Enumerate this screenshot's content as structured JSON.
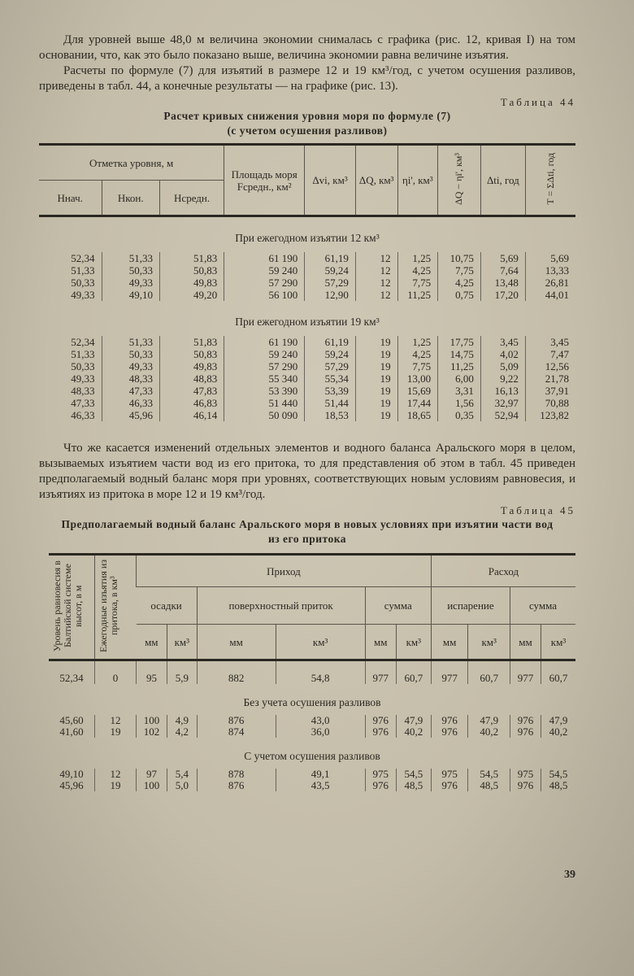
{
  "intro_paragraphs": [
    "Для уровней выше 48,0 м величина экономии снималась с графика (рис. 12, кривая I) на том основании, что, как это было показано выше, величина экономии равна величине изъятия.",
    "Расчеты по формуле (7) для изъятий в размере 12 и 19 км³/год, с учетом осушения разливов, приведены в табл. 44, а конечные результаты — на графике (рис. 13)."
  ],
  "table44": {
    "label": "Таблица 44",
    "title": "Расчет кривых снижения уровня моря по формуле (7)",
    "subtitle": "(с учетом осушения разливов)",
    "header_group": "Отметка уровня, м",
    "headers": [
      "Hнач.",
      "Hкон.",
      "Hсредн.",
      "Площадь моря Fсредн., км²",
      "Δvi, км³",
      "ΔQ, км³",
      "ηi', км³",
      "ΔQ − ηi', км³",
      "Δti, год",
      "T = ΣΔti, год"
    ],
    "sections": [
      {
        "title": "При ежегодном изъятии 12 км³",
        "rows": [
          [
            "52,34",
            "51,33",
            "51,83",
            "61 190",
            "61,19",
            "12",
            "1,25",
            "10,75",
            "5,69",
            "5,69"
          ],
          [
            "51,33",
            "50,33",
            "50,83",
            "59 240",
            "59,24",
            "12",
            "4,25",
            "7,75",
            "7,64",
            "13,33"
          ],
          [
            "50,33",
            "49,33",
            "49,83",
            "57 290",
            "57,29",
            "12",
            "7,75",
            "4,25",
            "13,48",
            "26,81"
          ],
          [
            "49,33",
            "49,10",
            "49,20",
            "56 100",
            "12,90",
            "12",
            "11,25",
            "0,75",
            "17,20",
            "44,01"
          ]
        ]
      },
      {
        "title": "При ежегодном изъятии 19 км³",
        "rows": [
          [
            "52,34",
            "51,33",
            "51,83",
            "61 190",
            "61,19",
            "19",
            "1,25",
            "17,75",
            "3,45",
            "3,45"
          ],
          [
            "51,33",
            "50,33",
            "50,83",
            "59 240",
            "59,24",
            "19",
            "4,25",
            "14,75",
            "4,02",
            "7,47"
          ],
          [
            "50,33",
            "49,33",
            "49,83",
            "57 290",
            "57,29",
            "19",
            "7,75",
            "11,25",
            "5,09",
            "12,56"
          ],
          [
            "49,33",
            "48,33",
            "48,83",
            "55 340",
            "55,34",
            "19",
            "13,00",
            "6,00",
            "9,22",
            "21,78"
          ],
          [
            "48,33",
            "47,33",
            "47,83",
            "53 390",
            "53,39",
            "19",
            "15,69",
            "3,31",
            "16,13",
            "37,91"
          ],
          [
            "47,33",
            "46,33",
            "46,83",
            "51 440",
            "51,44",
            "19",
            "17,44",
            "1,56",
            "32,97",
            "70,88"
          ],
          [
            "46,33",
            "45,96",
            "46,14",
            "50 090",
            "18,53",
            "19",
            "18,65",
            "0,35",
            "52,94",
            "123,82"
          ]
        ]
      }
    ]
  },
  "middle_paragraph": "Что же касается изменений отдельных элементов и водного баланса Аральского моря в целом, вызываемых изъятием части вод из его притока, то для представления об этом в табл. 45 приведен предполагаемый водный баланс моря при уровнях, соответствующих новым условиям равновесия, и изъятиях из притока в море 12 и 19 км³/год.",
  "table45": {
    "label": "Таблица 45",
    "title": "Предполагаемый водный баланс Аральского моря в новых условиях при изъятии части вод из его притока",
    "col1": "Уровень равновесия в Балтийской системе высот, в м",
    "col2": "Ежегодные изъятия из притока, в км³",
    "income": "Приход",
    "outcome": "Расход",
    "groups": [
      "осадки",
      "поверхностный приток",
      "сумма",
      "испарение",
      "сумма"
    ],
    "units": [
      "мм",
      "км³",
      "мм",
      "км³",
      "мм",
      "км³",
      "мм",
      "км³",
      "мм",
      "км³"
    ],
    "base_row": [
      "52,34",
      "0",
      "95",
      "5,9",
      "882",
      "54,8",
      "977",
      "60,7",
      "977",
      "60,7",
      "977",
      "60,7"
    ],
    "sections": [
      {
        "title": "Без учета осушения разливов",
        "rows": [
          [
            "45,60",
            "12",
            "100",
            "4,9",
            "876",
            "43,0",
            "976",
            "47,9",
            "976",
            "47,9",
            "976",
            "47,9"
          ],
          [
            "41,60",
            "19",
            "102",
            "4,2",
            "874",
            "36,0",
            "976",
            "40,2",
            "976",
            "40,2",
            "976",
            "40,2"
          ]
        ]
      },
      {
        "title": "С учетом осушения разливов",
        "rows": [
          [
            "49,10",
            "12",
            "97",
            "5,4",
            "878",
            "49,1",
            "975",
            "54,5",
            "975",
            "54,5",
            "975",
            "54,5"
          ],
          [
            "45,96",
            "19",
            "100",
            "5,0",
            "876",
            "43,5",
            "976",
            "48,5",
            "976",
            "48,5",
            "976",
            "48,5"
          ]
        ]
      }
    ]
  },
  "page_number": "39"
}
